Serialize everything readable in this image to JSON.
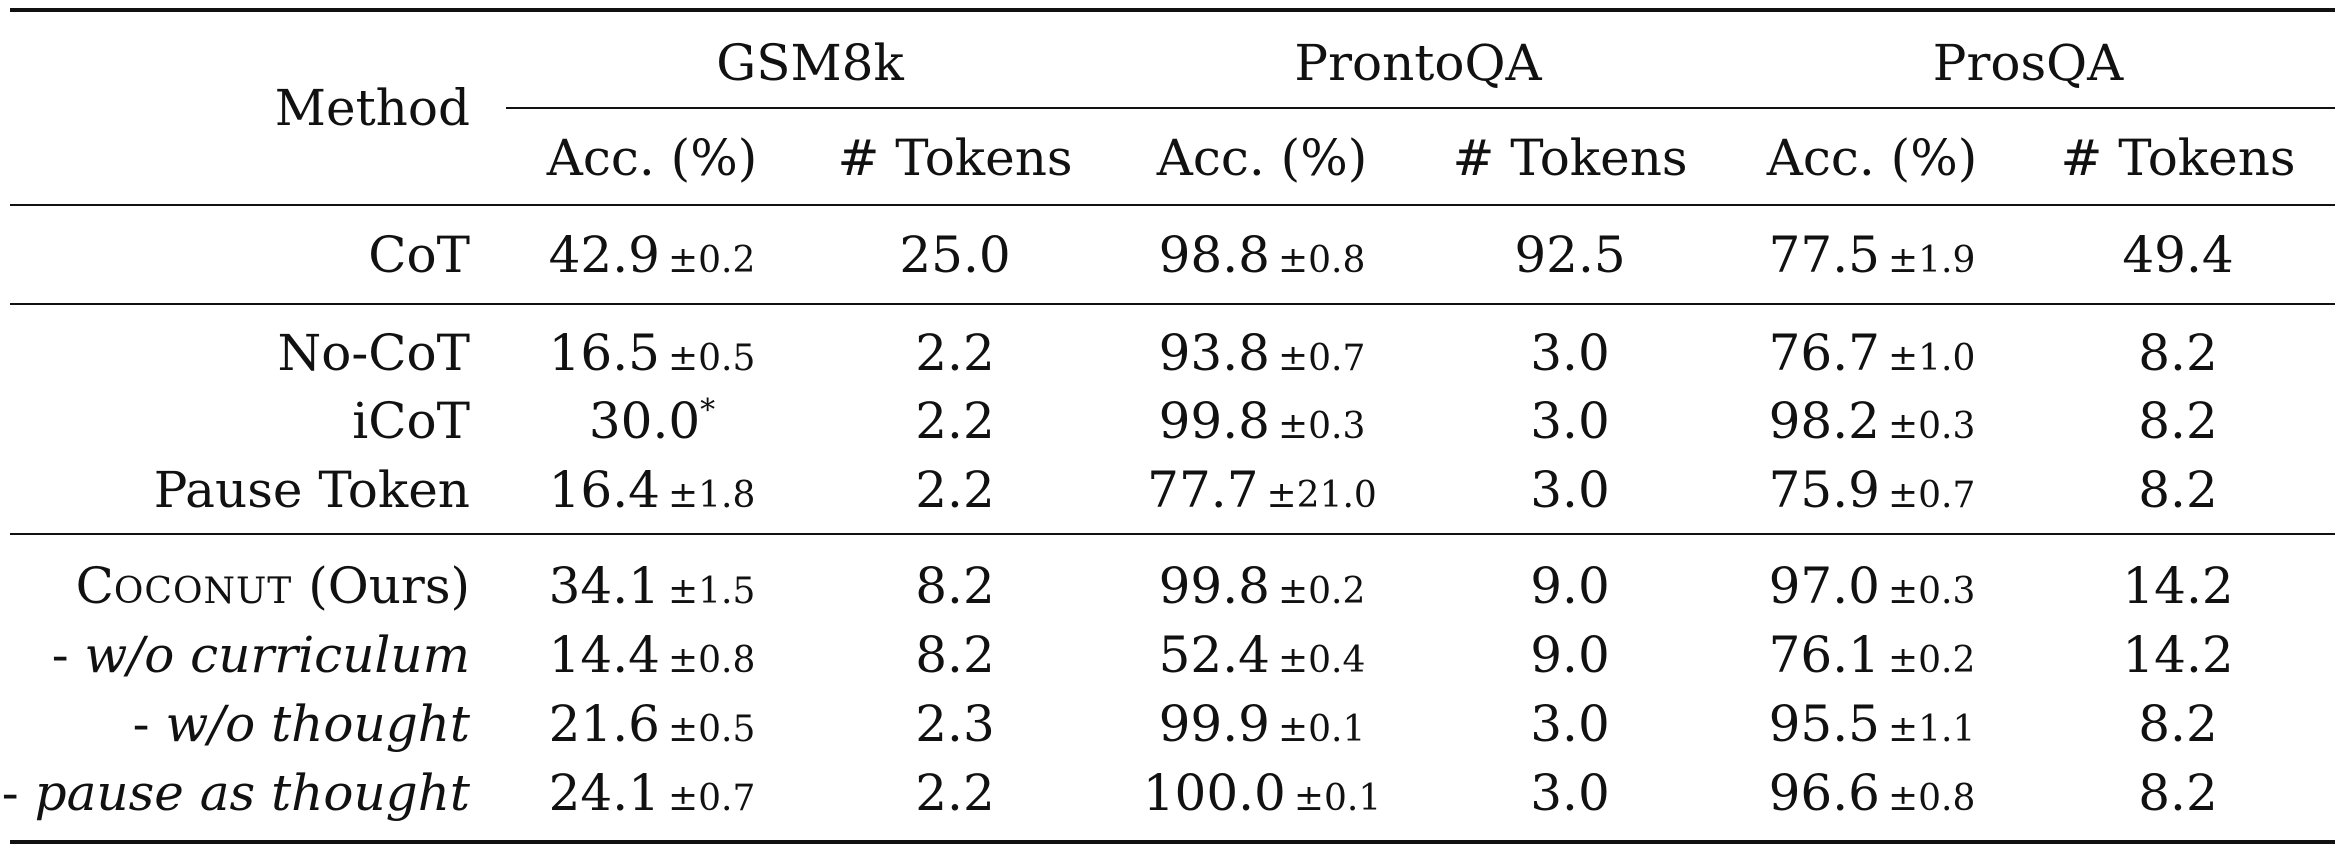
{
  "table": {
    "columns": {
      "method_header": "Method",
      "groups": [
        "GSM8k",
        "ProntoQA",
        "ProsQA"
      ],
      "sub_headers": [
        "Acc. (%)",
        "# Tokens"
      ]
    },
    "rows": [
      {
        "method": "CoT",
        "gsm8k": {
          "acc": "42.9",
          "std": "±0.2",
          "tokens": "25.0"
        },
        "prontoqa": {
          "acc": "98.8",
          "std": "±0.8",
          "tokens": "92.5"
        },
        "prosqa": {
          "acc": "77.5",
          "std": "±1.9",
          "tokens": "49.4"
        }
      },
      {
        "method": "No-CoT",
        "gsm8k": {
          "acc": "16.5",
          "std": "±0.5",
          "tokens": "2.2"
        },
        "prontoqa": {
          "acc": "93.8",
          "std": "±0.7",
          "tokens": "3.0"
        },
        "prosqa": {
          "acc": "76.7",
          "std": "±1.0",
          "tokens": "8.2"
        }
      },
      {
        "method": "iCoT",
        "gsm8k": {
          "acc": "30.0",
          "mark": "*",
          "tokens": "2.2"
        },
        "prontoqa": {
          "acc": "99.8",
          "std": "±0.3",
          "tokens": "3.0"
        },
        "prosqa": {
          "acc": "98.2",
          "std": "±0.3",
          "tokens": "8.2"
        }
      },
      {
        "method": "Pause Token",
        "gsm8k": {
          "acc": "16.4",
          "std": "±1.8",
          "tokens": "2.2"
        },
        "prontoqa": {
          "acc": "77.7",
          "std": "±21.0",
          "tokens": "3.0"
        },
        "prosqa": {
          "acc": "75.9",
          "std": "±0.7",
          "tokens": "8.2"
        }
      },
      {
        "method_parts": {
          "c": "C",
          "rest": "OCONUT",
          "suffix": " (Ours)"
        },
        "gsm8k": {
          "acc": "34.1",
          "std": "±1.5",
          "tokens": "8.2"
        },
        "prontoqa": {
          "acc": "99.8",
          "std": "±0.2",
          "tokens": "9.0"
        },
        "prosqa": {
          "acc": "97.0",
          "std": "±0.3",
          "tokens": "14.2"
        }
      },
      {
        "method_prefix": "- ",
        "method_ital": "w/o curriculum",
        "gsm8k": {
          "acc": "14.4",
          "std": "±0.8",
          "tokens": "8.2"
        },
        "prontoqa": {
          "acc": "52.4",
          "std": "±0.4",
          "tokens": "9.0"
        },
        "prosqa": {
          "acc": "76.1",
          "std": "±0.2",
          "tokens": "14.2"
        }
      },
      {
        "method_prefix": "- ",
        "method_ital": "w/o thought",
        "gsm8k": {
          "acc": "21.6",
          "std": "±0.5",
          "tokens": "2.3"
        },
        "prontoqa": {
          "acc": "99.9",
          "std": "±0.1",
          "tokens": "3.0"
        },
        "prosqa": {
          "acc": "95.5",
          "std": "±1.1",
          "tokens": "8.2"
        }
      },
      {
        "method_prefix": "- ",
        "method_ital": "pause as thought",
        "gsm8k": {
          "acc": "24.1",
          "std": "±0.7",
          "tokens": "2.2"
        },
        "prontoqa": {
          "acc": "100.0",
          "std": "±0.1",
          "tokens": "3.0"
        },
        "prosqa": {
          "acc": "96.6",
          "std": "±0.8",
          "tokens": "8.2"
        }
      }
    ]
  }
}
